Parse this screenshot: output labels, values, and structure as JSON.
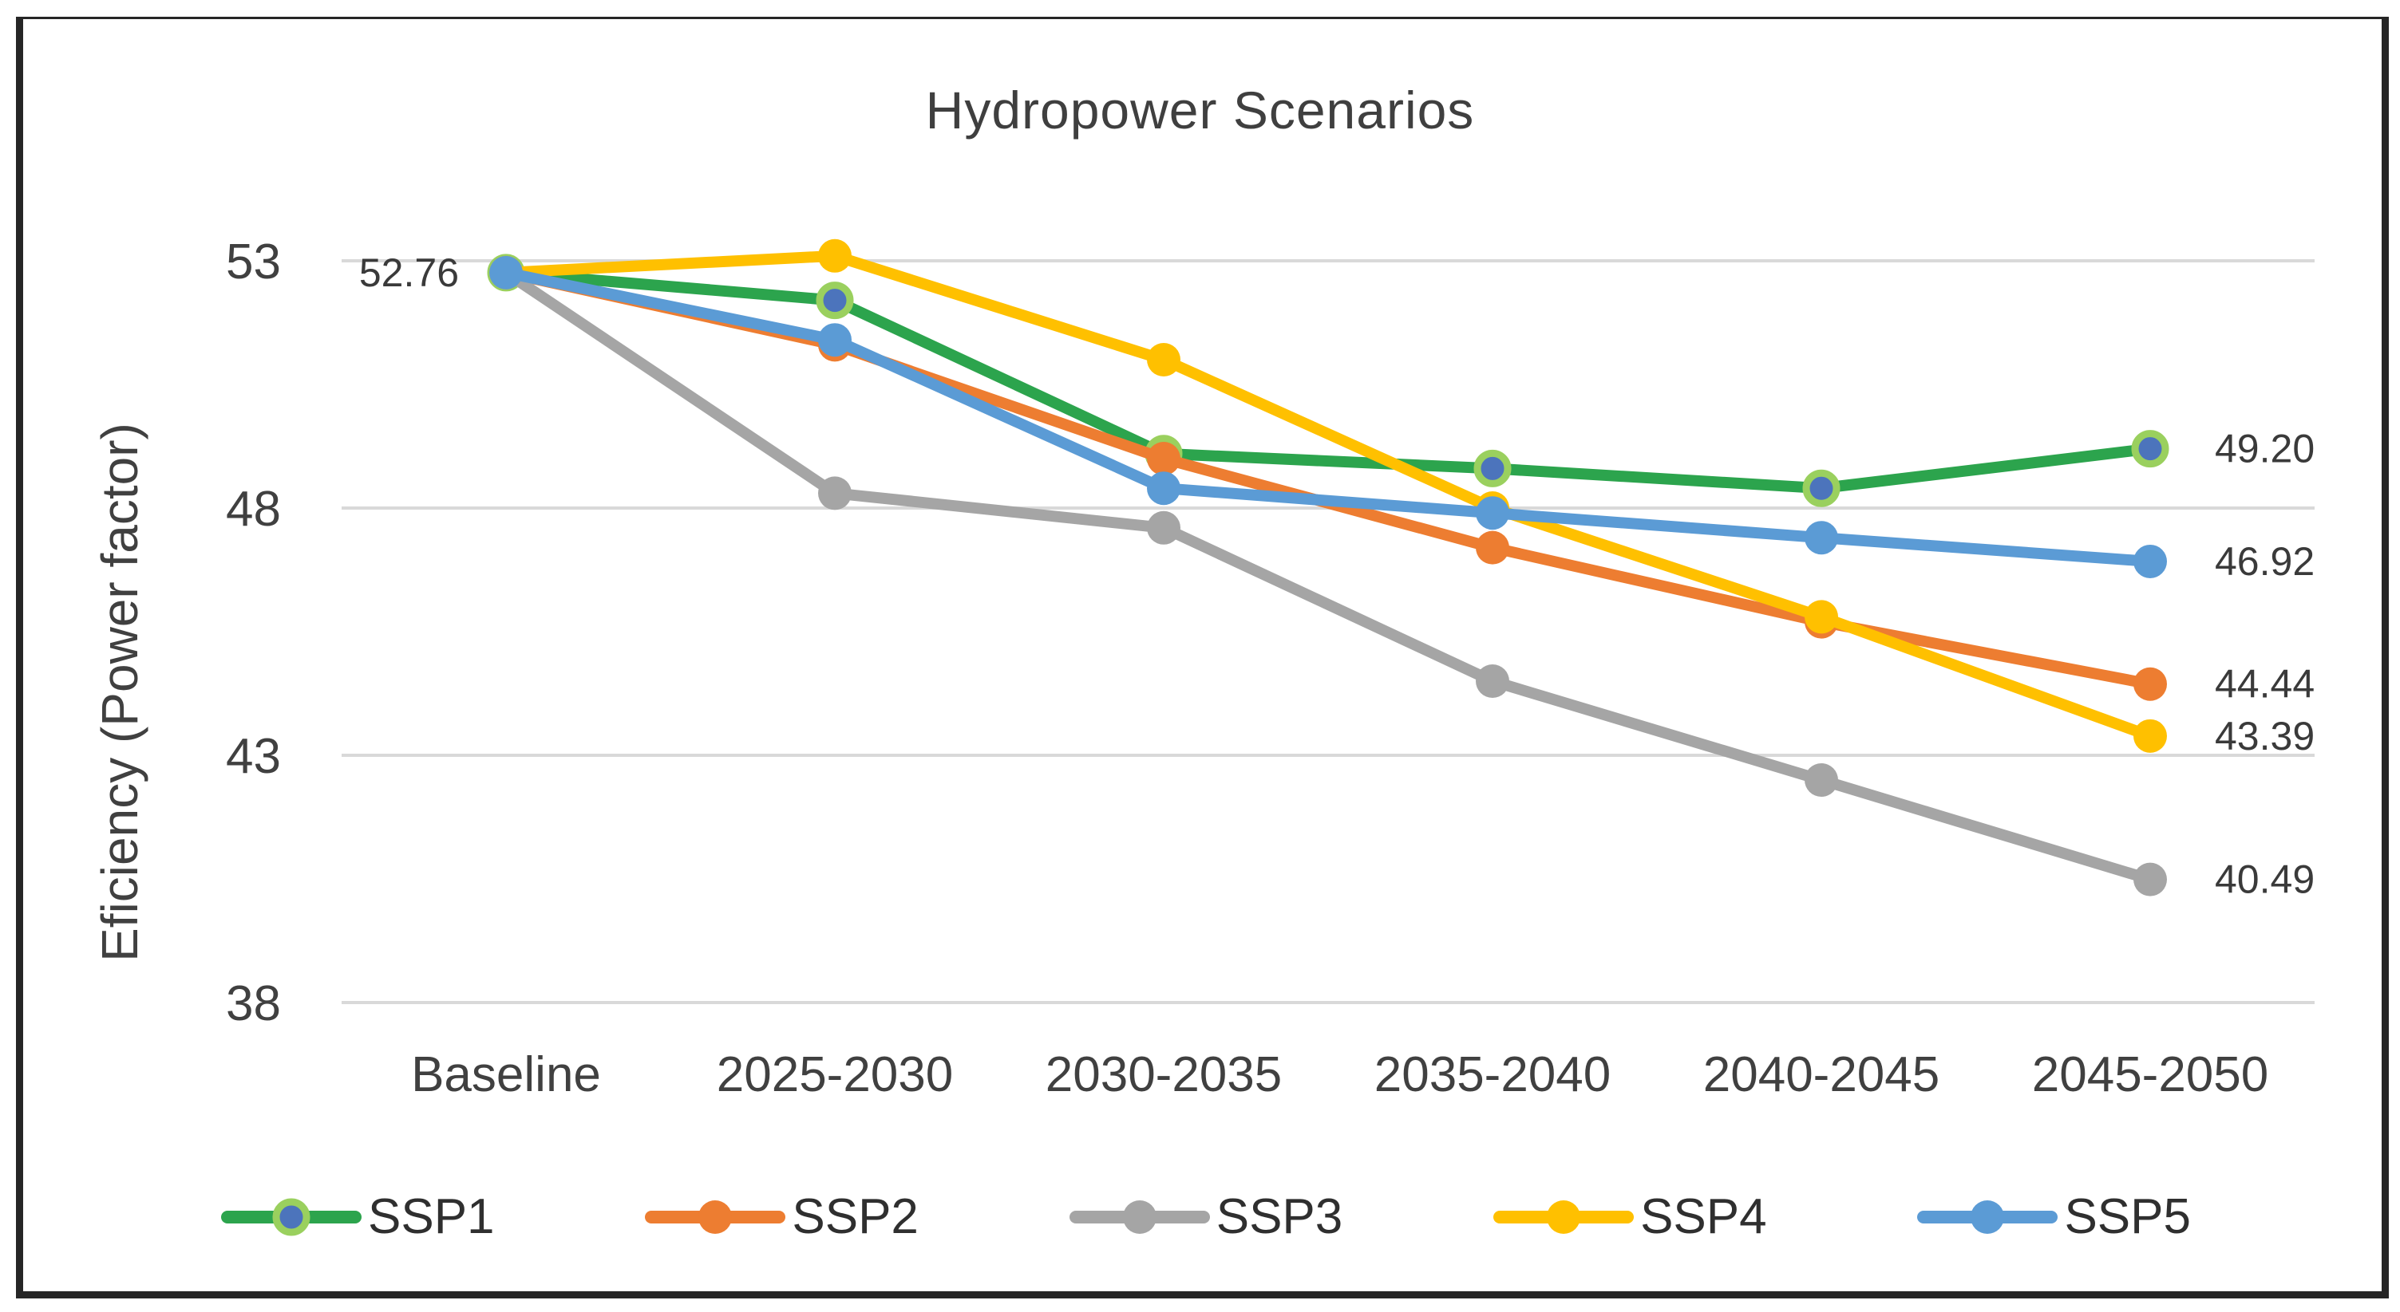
{
  "title": "Hydropower Scenarios",
  "chart_data": {
    "type": "line",
    "title": "Hydropower Scenarios",
    "xlabel": "",
    "ylabel": "Eficiency (Power factor)",
    "categories": [
      "Baseline",
      "2025-2030",
      "2030-2035",
      "2035-2040",
      "2040-2045",
      "2045-2050"
    ],
    "yticks": [
      53,
      48,
      43,
      38
    ],
    "ylim": [
      38,
      53
    ],
    "grid": true,
    "legend_position": "bottom",
    "baseline_label": "52.76",
    "series": [
      {
        "name": "SSP1",
        "color": "#2ca44d",
        "marker_fill": "#4c74bc",
        "marker_ring": "#9ad05e",
        "values": [
          52.76,
          52.2,
          49.1,
          48.8,
          48.4,
          49.2
        ],
        "end_label": "49.20"
      },
      {
        "name": "SSP2",
        "color": "#ed7d31",
        "values": [
          52.76,
          51.3,
          49.0,
          47.2,
          45.7,
          44.44
        ],
        "end_label": "44.44"
      },
      {
        "name": "SSP3",
        "color": "#a5a5a5",
        "values": [
          52.76,
          48.3,
          47.6,
          44.5,
          42.5,
          40.49
        ],
        "end_label": "40.49"
      },
      {
        "name": "SSP4",
        "color": "#ffc000",
        "values": [
          52.76,
          53.1,
          51.0,
          48.0,
          45.8,
          43.39
        ],
        "end_label": "43.39"
      },
      {
        "name": "SSP5",
        "color": "#5b9bd5",
        "values": [
          52.76,
          51.4,
          48.4,
          47.9,
          47.4,
          46.92
        ],
        "end_label": "46.92"
      }
    ]
  },
  "colors": {
    "grid": "#d9d9d9",
    "text": "#404040",
    "data_label": "#3a3a3a",
    "frame": "#262626",
    "background": "#ffffff"
  }
}
